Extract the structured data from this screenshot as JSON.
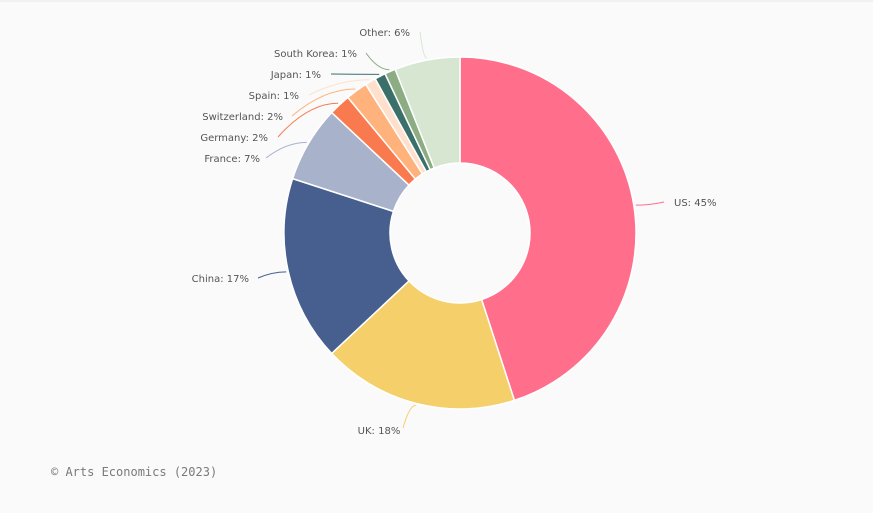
{
  "chart_data": {
    "type": "pie",
    "donut": true,
    "slices": [
      {
        "name": "US",
        "value": 45,
        "label": "US: 45%",
        "color": "#ff6e8a"
      },
      {
        "name": "UK",
        "value": 18,
        "label": "UK: 18%",
        "color": "#f4cf6a"
      },
      {
        "name": "China",
        "value": 17,
        "label": "China: 17%",
        "color": "#475f8f"
      },
      {
        "name": "France",
        "value": 7,
        "label": "France: 7%",
        "color": "#a8b3cb"
      },
      {
        "name": "Germany",
        "value": 2,
        "label": "Germany: 2%",
        "color": "#fa7a50"
      },
      {
        "name": "Switzerland",
        "value": 2,
        "label": "Switzerland: 2%",
        "color": "#ffb27c"
      },
      {
        "name": "Spain",
        "value": 1,
        "label": "Spain: 1%",
        "color": "#ffe0cc"
      },
      {
        "name": "Japan",
        "value": 1,
        "label": "Japan: 1%",
        "color": "#3b6f6a"
      },
      {
        "name": "South Korea",
        "value": 1,
        "label": "South Korea: 1%",
        "color": "#8cad84"
      },
      {
        "name": "Other",
        "value": 6,
        "label": "Other: 6%",
        "color": "#d6e6d0"
      }
    ]
  },
  "source": "© Arts Economics (2023)"
}
